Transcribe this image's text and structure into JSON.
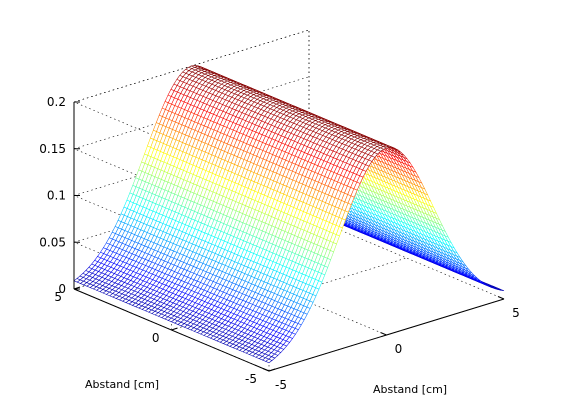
{
  "chart_data": {
    "type": "surface",
    "title": "",
    "xlabel": "Abstand [cm]",
    "ylabel": "Abstand [cm]",
    "zlabel": "",
    "xlim": [
      -5,
      5
    ],
    "ylim": [
      -5,
      5
    ],
    "zlim": [
      0,
      0.2
    ],
    "x_ticks": [
      "-5",
      "0",
      "5"
    ],
    "y_ticks": [
      "-5",
      "0",
      "5"
    ],
    "z_ticks": [
      "0",
      "0.05",
      "0.1",
      "0.15",
      "0.2"
    ],
    "grid": true,
    "colormap": "jet",
    "surface": {
      "function": "gaussian in x, constant in y",
      "peak": 0.2,
      "center_x": 0,
      "sigma": 2,
      "x_range": [
        -5,
        5
      ],
      "y_range": [
        -5,
        5
      ]
    }
  },
  "colors": {
    "background": "#ffffff",
    "axes": "#000000"
  }
}
